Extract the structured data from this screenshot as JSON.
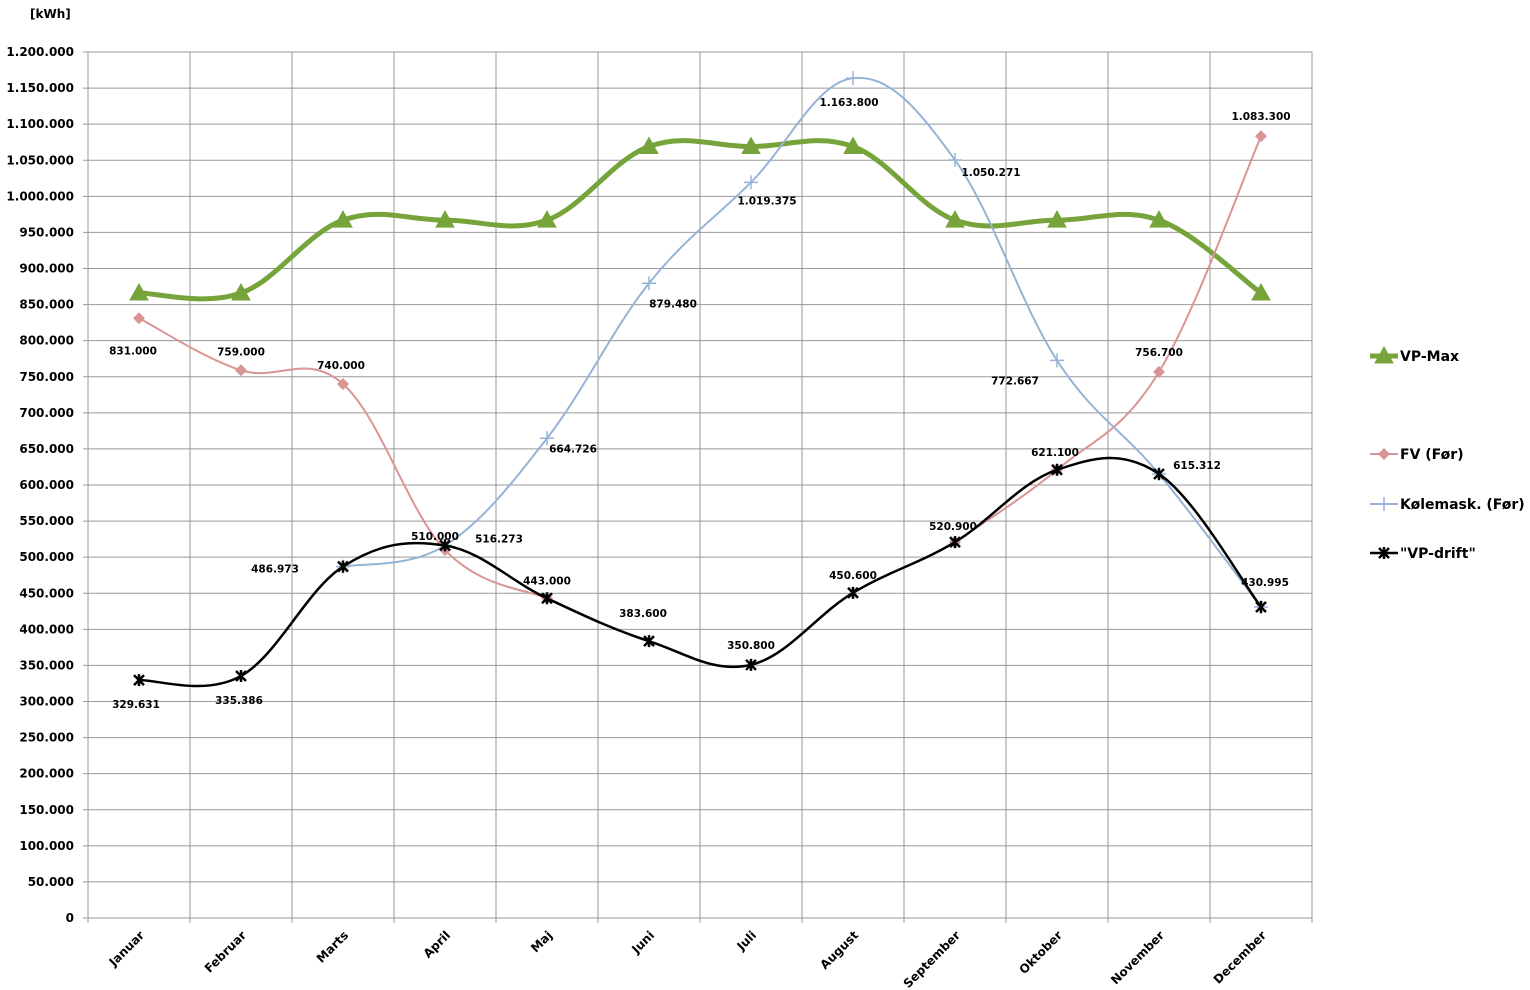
{
  "chart_data": {
    "type": "line",
    "ylabel": "[kWh]",
    "ylim": [
      0,
      1200000
    ],
    "ytick_step": 50000,
    "yticks": [
      "0",
      "50.000",
      "100.000",
      "150.000",
      "200.000",
      "250.000",
      "300.000",
      "350.000",
      "400.000",
      "450.000",
      "500.000",
      "550.000",
      "600.000",
      "650.000",
      "700.000",
      "750.000",
      "800.000",
      "850.000",
      "900.000",
      "950.000",
      "1.000.000",
      "1.050.000",
      "1.100.000",
      "1.150.000",
      "1.200.000"
    ],
    "categories": [
      "Januar",
      "Februar",
      "Marts",
      "April",
      "Maj",
      "Juni",
      "Juli",
      "August",
      "September",
      "Oktober",
      "November",
      "December"
    ],
    "grid": true,
    "legend_position": "right",
    "series": [
      {
        "name": "VP-Max",
        "color": "#77a43a",
        "marker": "triangle",
        "values": [
          866000,
          866000,
          967000,
          967000,
          967000,
          1069000,
          1069000,
          1069000,
          967000,
          967000,
          967000,
          866000
        ],
        "labels": []
      },
      {
        "name": "FV (Før)",
        "color": "#d99594",
        "marker": "diamond",
        "values": [
          831000,
          759000,
          740000,
          510000,
          443000,
          null,
          null,
          null,
          520900,
          621100,
          756700,
          1083300
        ],
        "labels": [
          "831.000",
          "759.000",
          "740.000",
          "510.000",
          "443.000",
          null,
          null,
          null,
          "520.900",
          "621.100",
          "756.700",
          "1.083.300"
        ]
      },
      {
        "name": "Kølemask. (Før)",
        "color": "#95b3d7",
        "marker": "plus",
        "values": [
          null,
          null,
          486973,
          516273,
          664726,
          879480,
          1019375,
          1163800,
          1050271,
          772667,
          615312,
          430995
        ],
        "labels": [
          null,
          null,
          "486.973",
          "516.273",
          "664.726",
          "879.480",
          "1.019.375",
          "1.163.800",
          "1.050.271",
          "772.667",
          "615.312",
          "430.995"
        ]
      },
      {
        "name": "\"VP-drift\"",
        "color": "#000000",
        "marker": "star",
        "values": [
          329631,
          335386,
          486973,
          516273,
          443000,
          383600,
          350800,
          450600,
          520900,
          621100,
          615312,
          430995
        ],
        "labels": [
          "329.631",
          "335.386",
          null,
          null,
          null,
          "383.600",
          "350.800",
          "450.600",
          null,
          null,
          null,
          null
        ]
      }
    ]
  }
}
